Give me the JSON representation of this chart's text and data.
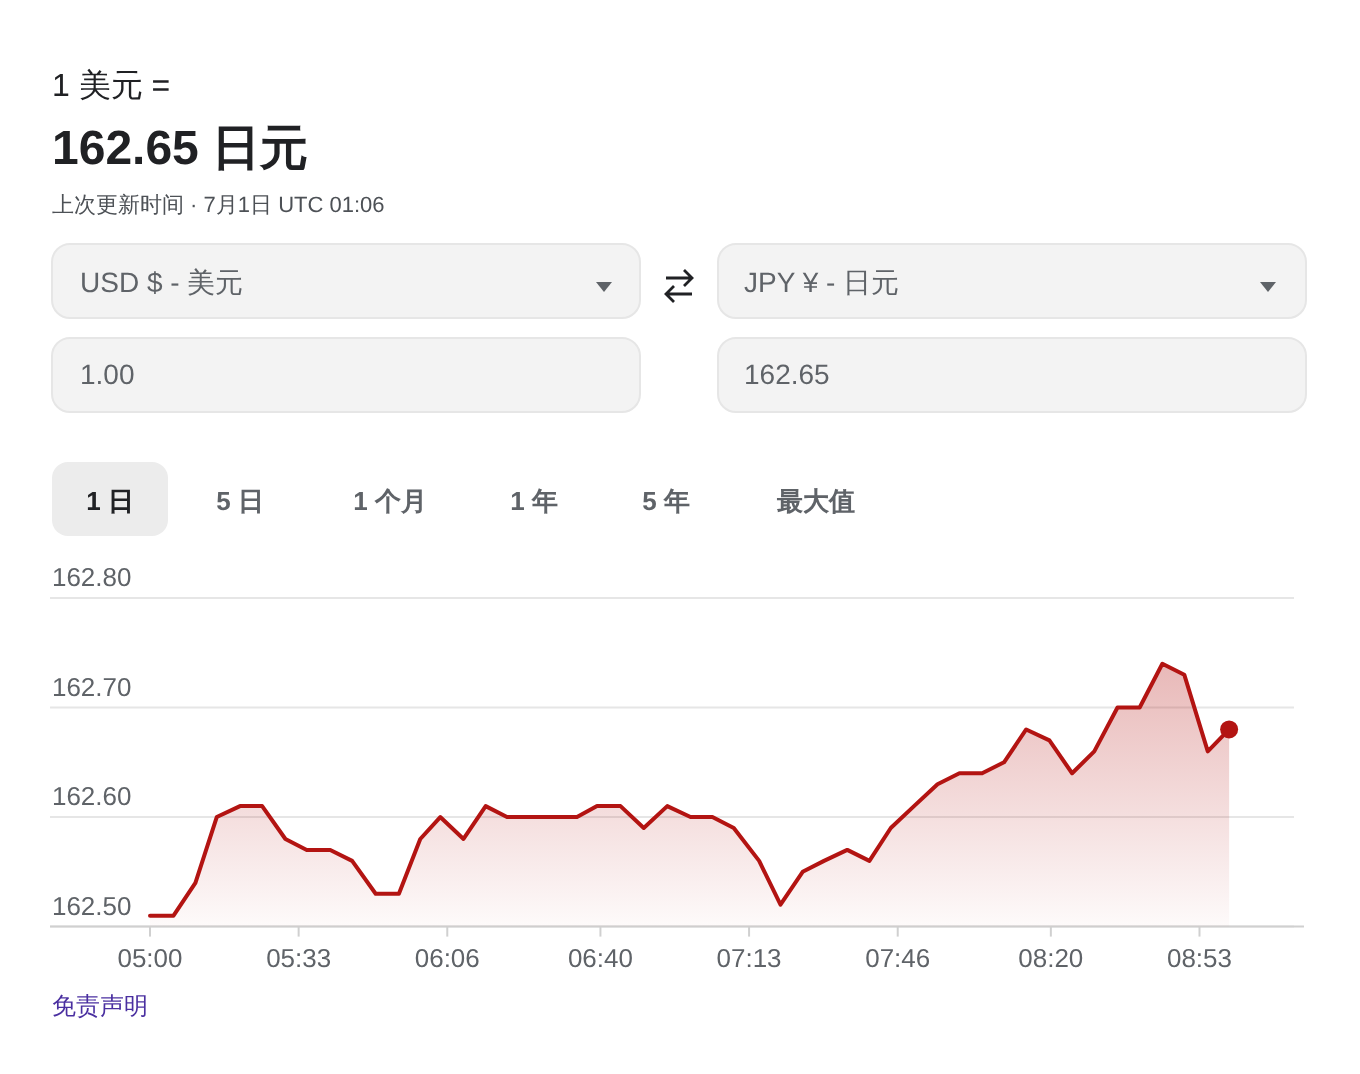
{
  "chart_data": {
    "type": "area",
    "title": "1 美元 =",
    "subtitle": "162.65 日元",
    "annotations": [
      "上次更新时间 · 7月1日 UTC 01:06",
      "USD $ - 美元",
      "JPY ¥ - 日元",
      "1.00",
      "162.65",
      "1 日",
      "5 日",
      "1 个月",
      "1 年",
      "5 年",
      "最大值",
      "免责声明"
    ],
    "x": [
      5.0,
      5.087,
      5.168,
      5.247,
      5.333,
      5.415,
      5.501,
      5.58,
      5.667,
      5.748,
      5.835,
      5.921,
      6.0,
      6.074,
      6.16,
      6.242,
      6.321,
      6.407,
      6.58,
      6.654,
      6.741,
      6.827,
      6.914,
      7.0,
      7.081,
      7.16,
      7.254,
      7.333,
      7.415,
      7.494,
      7.58,
      7.662,
      7.741,
      7.827,
      7.914,
      7.995,
      8.079,
      8.16,
      8.242,
      8.328,
      8.412,
      8.494,
      8.58,
      8.662,
      8.746,
      8.827,
      8.914,
      8.993
    ],
    "series": [
      {
        "color": "#b31412",
        "values": [
          162.51,
          162.51,
          162.54,
          162.6,
          162.61,
          162.61,
          162.58,
          162.57,
          162.57,
          162.56,
          162.53,
          162.53,
          162.58,
          162.6,
          162.58,
          162.61,
          162.6,
          162.6,
          162.6,
          162.61,
          162.61,
          162.59,
          162.61,
          162.6,
          162.6,
          162.59,
          162.56,
          162.52,
          162.55,
          162.56,
          162.57,
          162.56,
          162.59,
          162.61,
          162.63,
          162.64,
          162.64,
          162.65,
          162.68,
          162.67,
          162.64,
          162.66,
          162.7,
          162.7,
          162.74,
          162.73,
          162.66,
          162.68
        ]
      }
    ],
    "xlim": [
      4.63,
      9.27
    ],
    "ylim": [
      162.5,
      162.8
    ],
    "xticks": [
      {
        "value": 5,
        "label": "05:00"
      },
      {
        "value": 5.55,
        "label": "05:33"
      },
      {
        "value": 6.1,
        "label": "06:06"
      },
      {
        "value": 6.6667,
        "label": "06:40"
      },
      {
        "value": 7.2167,
        "label": "07:13"
      },
      {
        "value": 7.7667,
        "label": "07:46"
      },
      {
        "value": 8.3333,
        "label": "08:20"
      },
      {
        "value": 8.8833,
        "label": "08:53"
      }
    ],
    "yticks": [
      {
        "value": 162.5,
        "label": "162.50"
      },
      {
        "value": 162.6,
        "label": "162.60"
      },
      {
        "value": 162.7,
        "label": "162.70"
      },
      {
        "value": 162.8,
        "label": "162.80"
      }
    ],
    "grid": "y"
  }
}
